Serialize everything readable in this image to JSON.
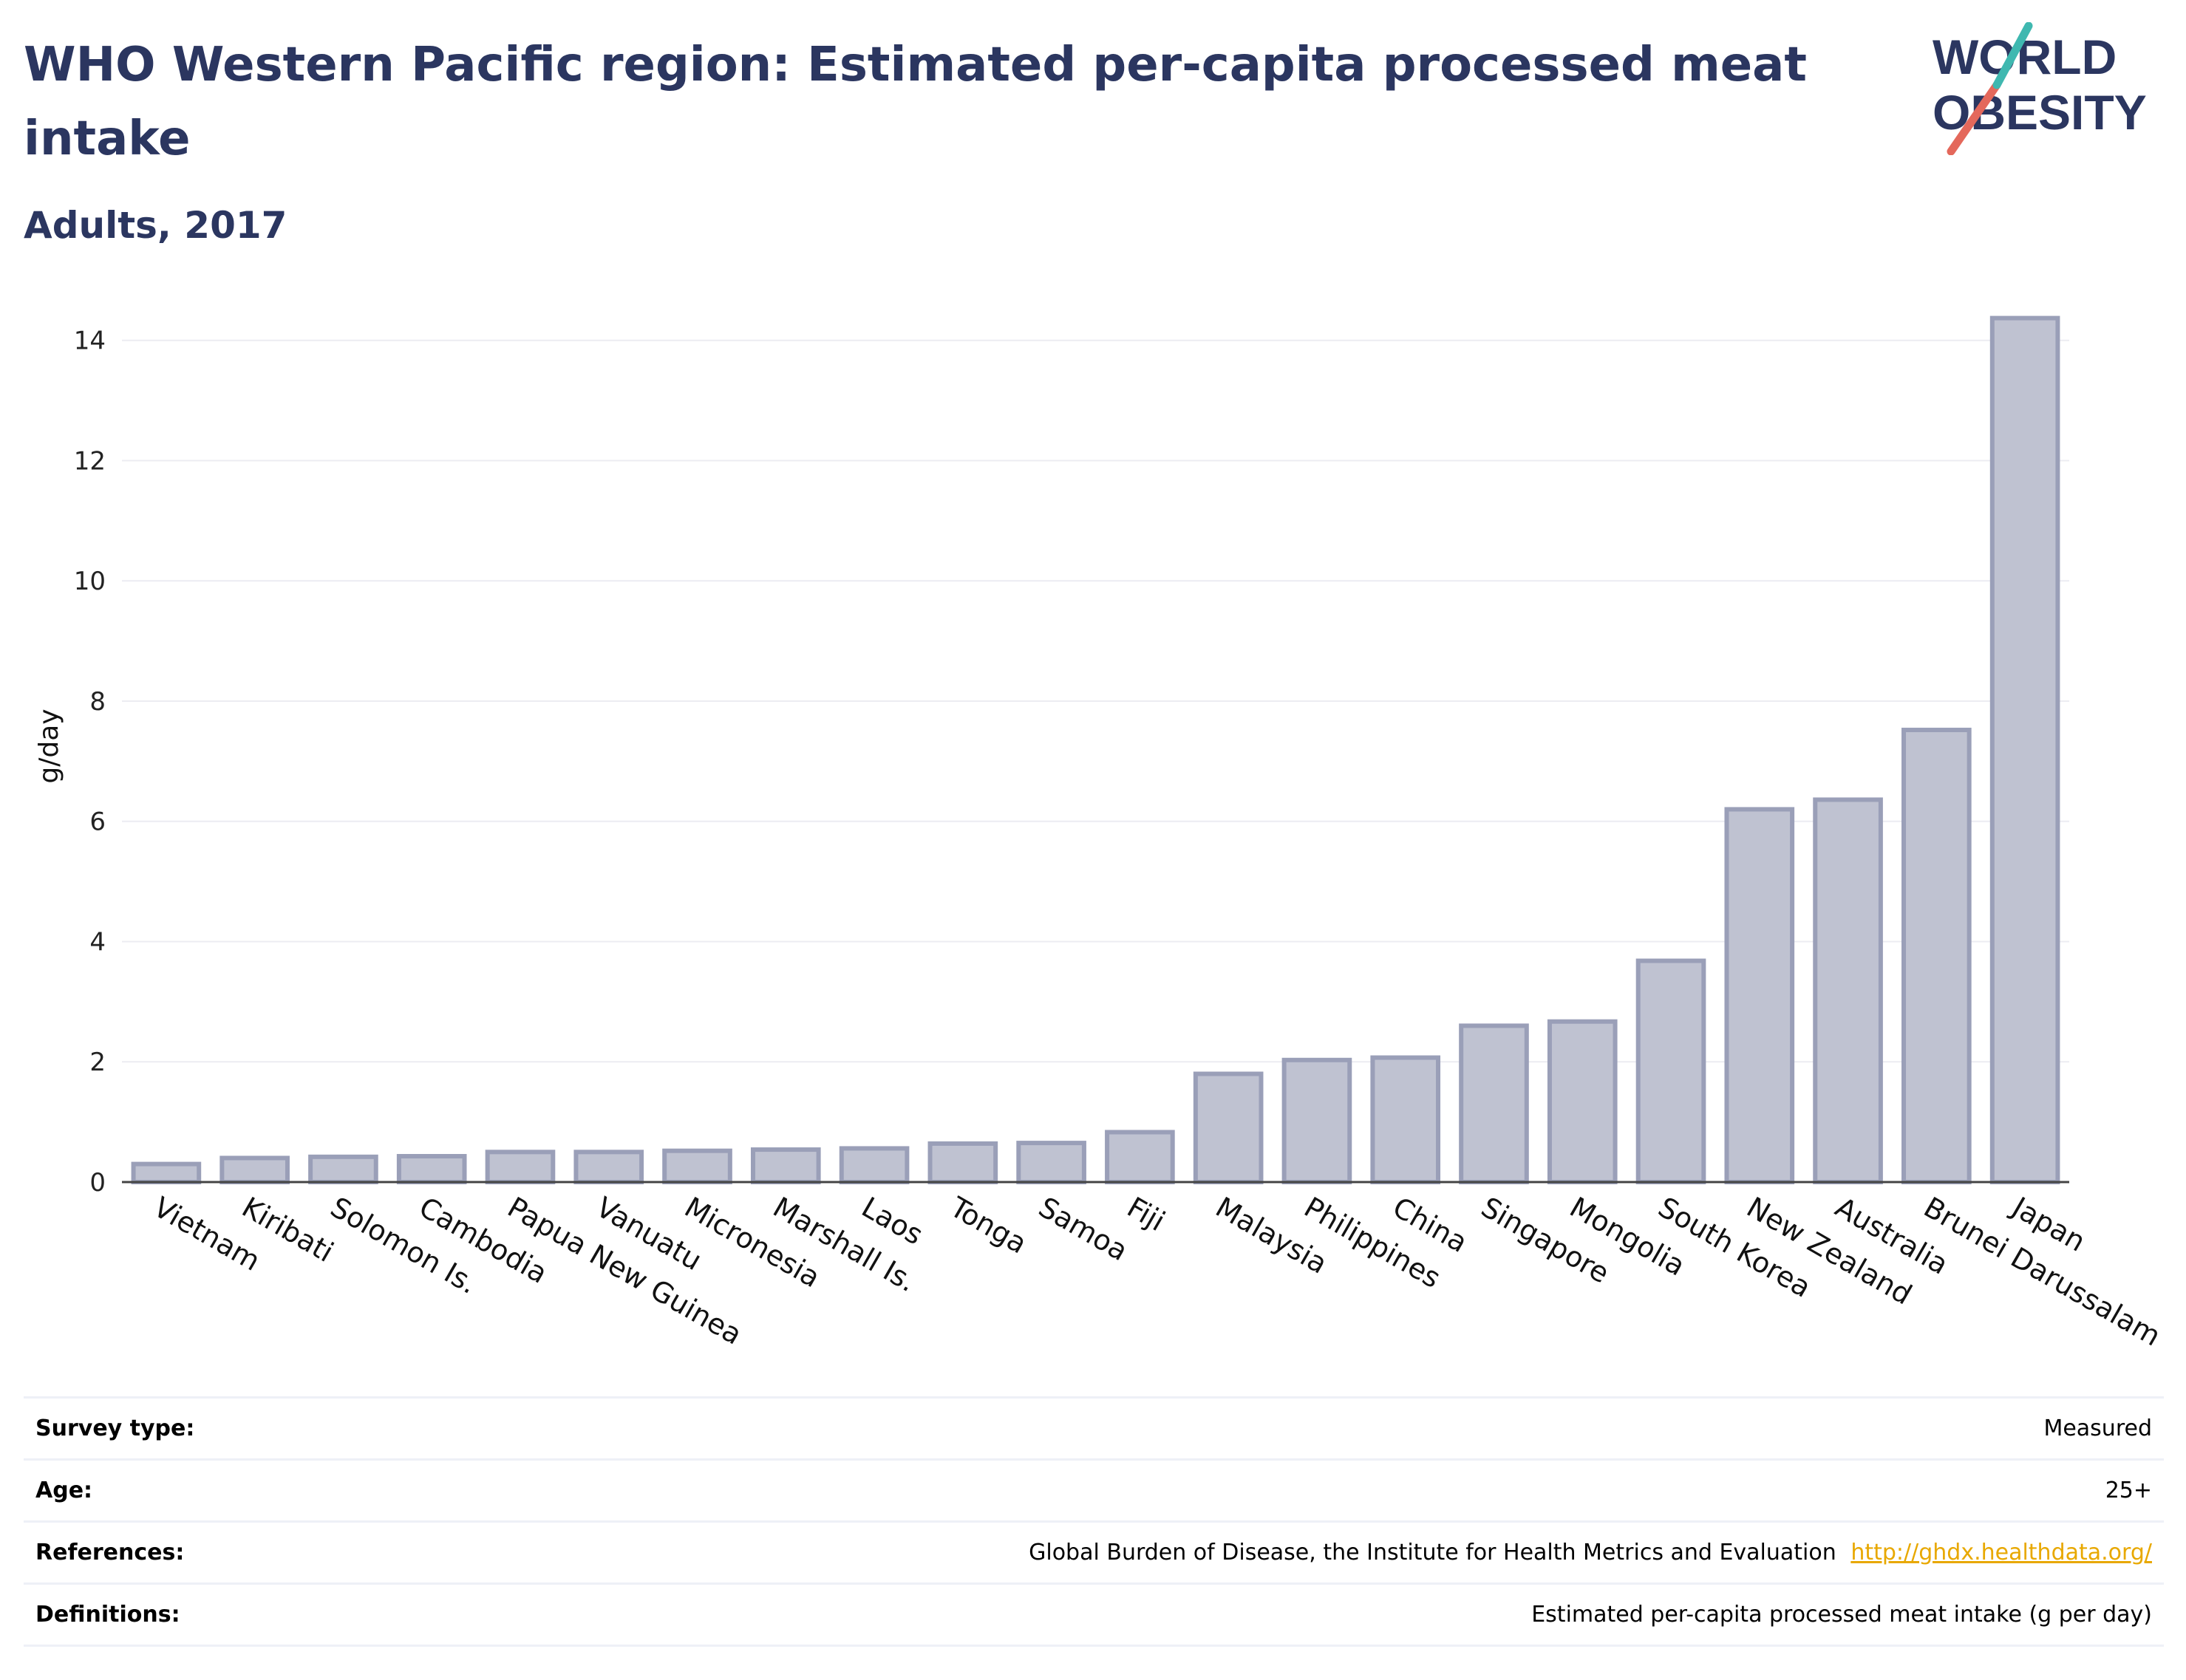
{
  "title": "WHO Western Pacific region: Estimated per-capita processed meat intake",
  "subtitle": "Adults, 2017",
  "logo": {
    "line1": "WORLD",
    "line2": "OBESITY",
    "accent_colors": [
      "#e4685b",
      "#3fb8b0"
    ],
    "text_color": "#2b3660"
  },
  "colors": {
    "title": "#2b3660",
    "bar_fill": "#bfc2d1",
    "bar_stroke": "#9a9fb8",
    "grid": "#ececf2",
    "axis": "#444444",
    "link": "#e8a800"
  },
  "chart_data": {
    "type": "bar",
    "ylabel": "g/day",
    "xlabel": "",
    "ylim": [
      0,
      14.5
    ],
    "yticks": [
      0,
      2,
      4,
      6,
      8,
      10,
      12,
      14
    ],
    "grid": true,
    "categories": [
      "Vietnam",
      "Kiribati",
      "Solomon Is.",
      "Cambodia",
      "Papua New Guinea",
      "Vanuatu",
      "Micronesia",
      "Marshall Is.",
      "Laos",
      "Tonga",
      "Samoa",
      "Fiji",
      "Malaysia",
      "Philippines",
      "China",
      "Singapore",
      "Mongolia",
      "South Korea",
      "New Zealand",
      "Australia",
      "Brunei Darussalam",
      "Japan"
    ],
    "values": [
      0.3,
      0.4,
      0.42,
      0.43,
      0.5,
      0.5,
      0.52,
      0.54,
      0.56,
      0.64,
      0.65,
      0.83,
      1.8,
      2.03,
      2.07,
      2.6,
      2.67,
      3.68,
      6.2,
      6.36,
      7.52,
      14.37
    ]
  },
  "meta": [
    {
      "label": "Survey type:",
      "value": "Measured"
    },
    {
      "label": "Age:",
      "value": "25+"
    },
    {
      "label": "References:",
      "value": "Global Burden of Disease, the Institute for Health Metrics and Evaluation",
      "link": "http://ghdx.healthdata.org/"
    },
    {
      "label": "Definitions:",
      "value": "Estimated per-capita processed meat intake (g per day)"
    }
  ]
}
